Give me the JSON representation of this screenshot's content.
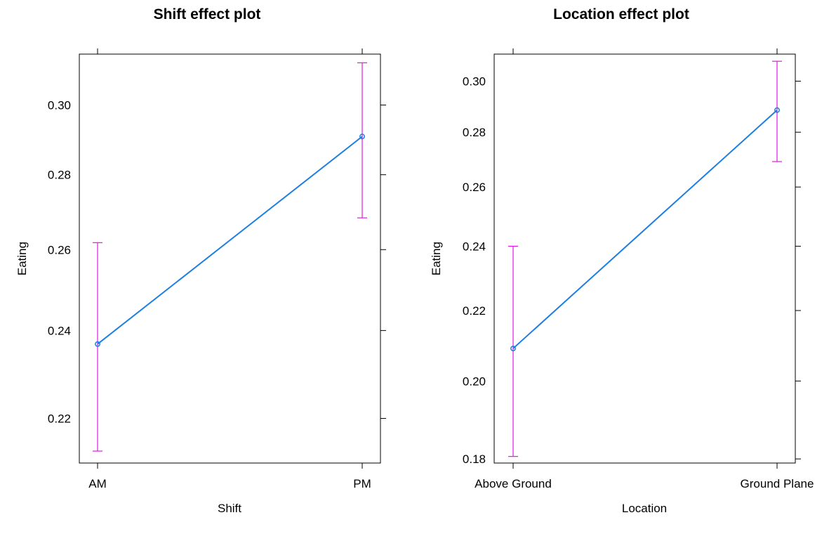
{
  "chart_data": [
    {
      "type": "line",
      "title": "Shift effect plot",
      "xlabel": "Shift",
      "ylabel": "Eating",
      "categories": [
        "AM",
        "PM"
      ],
      "series": [
        {
          "values": [
            0.2368,
            0.2908
          ],
          "lower": [
            0.213,
            0.2683
          ],
          "upper": [
            0.2618,
            0.3128
          ]
        }
      ],
      "yticks": [
        0.22,
        0.24,
        0.26,
        0.28,
        0.3
      ],
      "ytick_labels": [
        "0.22",
        "0.24",
        "0.26",
        "0.28",
        "0.30"
      ],
      "ylim": [
        0.2105,
        0.3155
      ],
      "log_y": true,
      "grid": false,
      "line_color": "#1e7fe0",
      "ci_color": "#e317e6"
    },
    {
      "type": "line",
      "title": "Location effect plot",
      "xlabel": "Location",
      "ylabel": "Eating",
      "categories": [
        "Above Ground",
        "Ground Plane"
      ],
      "series": [
        {
          "values": [
            0.209,
            0.2885
          ],
          "lower": [
            0.1806,
            0.2691
          ],
          "upper": [
            0.24,
            0.3082
          ]
        }
      ],
      "yticks": [
        0.18,
        0.2,
        0.22,
        0.24,
        0.26,
        0.28,
        0.3
      ],
      "ytick_labels": [
        "0.18",
        "0.20",
        "0.22",
        "0.24",
        "0.26",
        "0.28",
        "0.30"
      ],
      "ylim": [
        0.179,
        0.3112
      ],
      "log_y": true,
      "grid": false,
      "line_color": "#1e7fe0",
      "ci_color": "#e317e6"
    }
  ]
}
